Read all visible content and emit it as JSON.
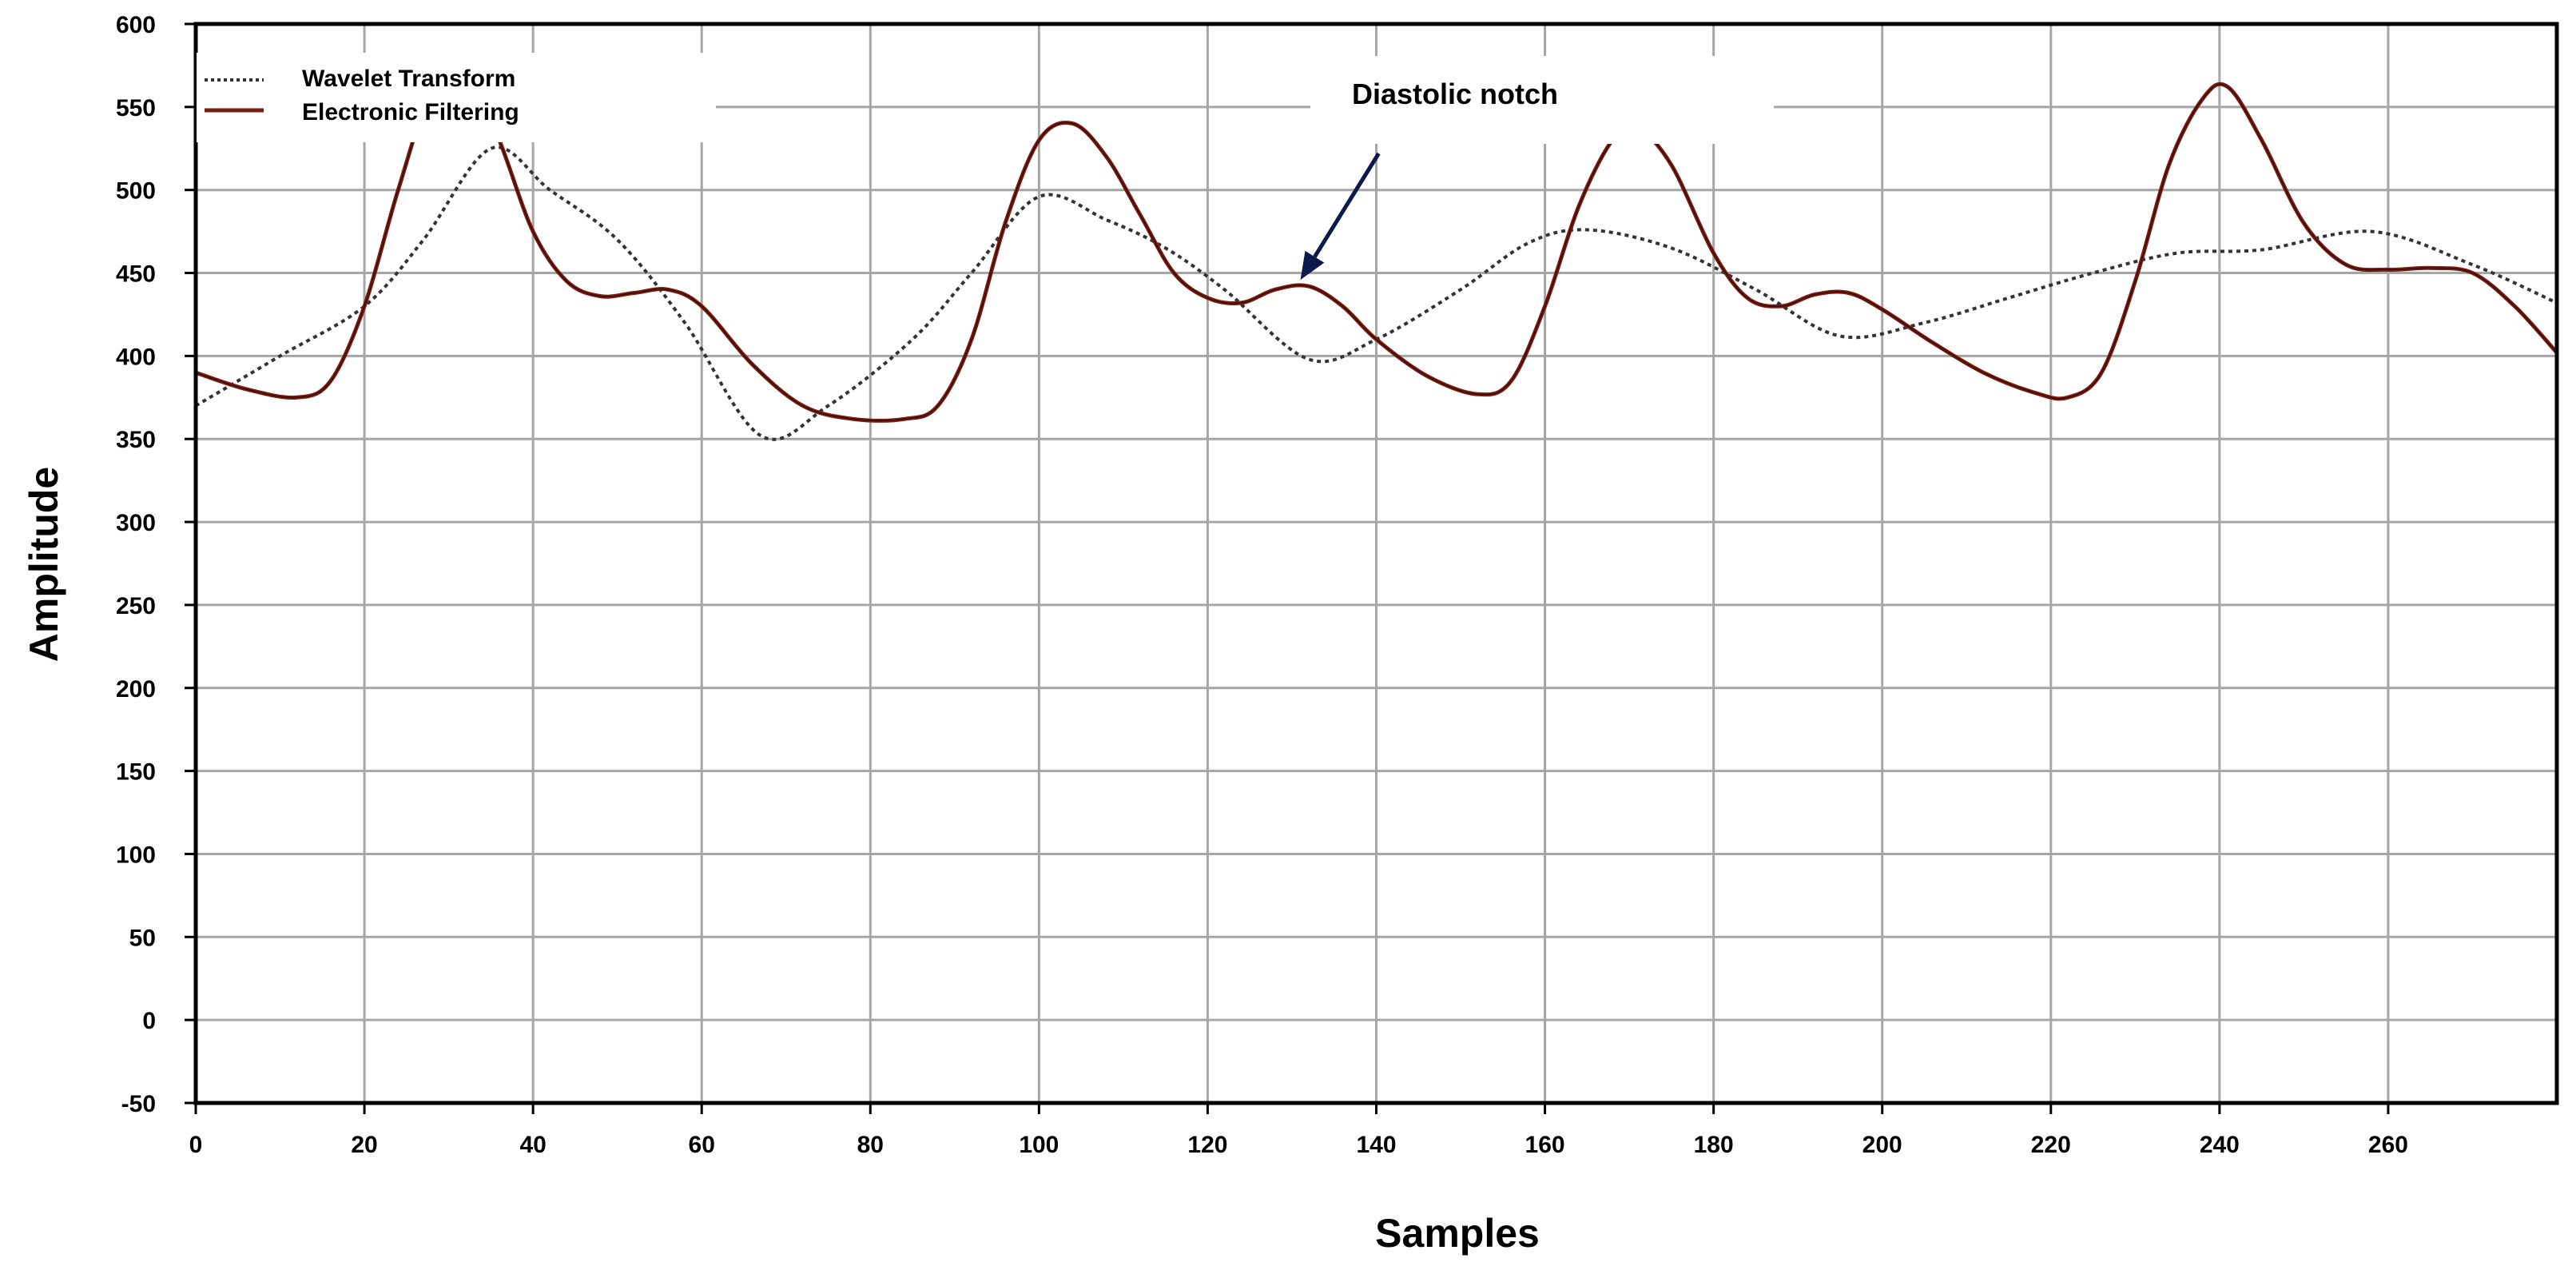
{
  "chart_data": {
    "type": "line",
    "xlabel": "Samples",
    "ylabel": "Amplitude",
    "xlim": [
      0,
      280
    ],
    "ylim": [
      -50,
      600
    ],
    "x_ticks": [
      0,
      20,
      40,
      60,
      80,
      100,
      120,
      140,
      160,
      180,
      200,
      220,
      240,
      260
    ],
    "y_ticks": [
      -50,
      0,
      50,
      100,
      150,
      200,
      250,
      300,
      350,
      400,
      450,
      500,
      550,
      600
    ],
    "grid": true,
    "legend_position": "top-left",
    "series": [
      {
        "name": "Wavelet Transform",
        "style": "dotted",
        "color": "#333333",
        "x": [
          0,
          10,
          20,
          27,
          35,
          42,
          50,
          58,
          67,
          75,
          85,
          92,
          100,
          108,
          115,
          122,
          132,
          140,
          150,
          158,
          165,
          175,
          185,
          195,
          205,
          215,
          225,
          235,
          245,
          258,
          270,
          280
        ],
        "y": [
          370,
          400,
          430,
          470,
          525,
          500,
          470,
          420,
          352,
          370,
          410,
          450,
          496,
          482,
          465,
          440,
          398,
          410,
          440,
          468,
          476,
          465,
          440,
          412,
          420,
          435,
          450,
          462,
          464,
          475,
          455,
          432
        ]
      },
      {
        "name": "Electronic Filtering",
        "style": "solid",
        "color": "#7a1e12",
        "x": [
          0,
          6,
          12,
          16,
          20,
          24,
          28,
          32,
          36,
          40,
          44,
          48,
          52,
          56,
          60,
          66,
          72,
          78,
          84,
          88,
          92,
          96,
          100,
          104,
          108,
          112,
          116,
          120,
          124,
          128,
          132,
          136,
          140,
          146,
          152,
          156,
          160,
          164,
          168,
          171,
          175,
          180,
          184,
          188,
          192,
          196,
          200,
          206,
          212,
          218,
          222,
          226,
          230,
          234,
          238,
          241,
          245,
          250,
          255,
          260,
          265,
          270,
          275,
          280
        ],
        "y": [
          390,
          380,
          375,
          385,
          430,
          500,
          560,
          575,
          530,
          475,
          445,
          436,
          438,
          440,
          430,
          395,
          370,
          362,
          362,
          370,
          410,
          480,
          530,
          540,
          520,
          485,
          450,
          435,
          432,
          440,
          442,
          430,
          410,
          388,
          377,
          385,
          430,
          490,
          530,
          537,
          515,
          462,
          435,
          430,
          437,
          438,
          428,
          408,
          390,
          378,
          375,
          390,
          445,
          515,
          555,
          562,
          530,
          480,
          455,
          452,
          453,
          450,
          430,
          402
        ]
      }
    ],
    "annotations": [
      {
        "text": "Diastolic notch",
        "target_x": 131,
        "target_y": 442
      }
    ]
  }
}
